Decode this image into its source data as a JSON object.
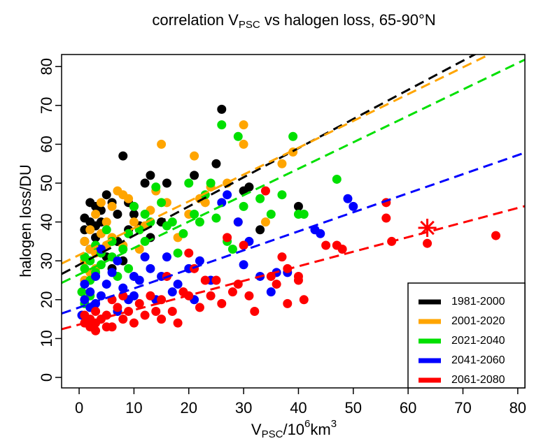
{
  "chart_data": {
    "type": "scatter",
    "title": [
      "correlation V",
      "PSC",
      " vs halogen loss, 65-90°N"
    ],
    "xlabel": [
      "V",
      "PSC",
      "/10",
      "6",
      "km",
      "3"
    ],
    "ylabel": "halogen loss/DU",
    "xlim": [
      -3.2,
      81.3
    ],
    "ylim": [
      -2.7,
      83.1
    ],
    "xticks": [
      0,
      10,
      20,
      30,
      40,
      50,
      60,
      70,
      80
    ],
    "yticks": [
      0,
      10,
      20,
      30,
      40,
      50,
      60,
      70,
      80
    ],
    "legend": "bottom-right",
    "series": [
      {
        "name": "1981-2000",
        "color": "black",
        "fit": {
          "slope": 0.75,
          "intercept": 29
        },
        "x": [
          8,
          13,
          12,
          16,
          21,
          25,
          26,
          30,
          31,
          33,
          40,
          5,
          6,
          2,
          3,
          1,
          1,
          4,
          7,
          9,
          10,
          15,
          3,
          2,
          5,
          6,
          8,
          10,
          11,
          13,
          4,
          1,
          2,
          3,
          7,
          9
        ],
        "values": [
          57,
          52,
          50,
          50,
          52,
          55,
          69,
          48,
          49,
          38,
          44,
          47,
          45,
          45,
          44,
          41,
          38,
          40,
          35,
          38,
          42,
          40,
          36,
          33,
          31,
          28,
          30,
          44,
          39,
          36,
          43,
          35,
          40,
          39,
          42,
          45
        ]
      },
      {
        "name": "2001-2020",
        "color": "orange",
        "fit": {
          "slope": 0.69,
          "intercept": 31.5
        },
        "x": [
          1,
          1,
          2,
          2,
          3,
          3,
          4,
          5,
          6,
          7,
          8,
          9,
          10,
          11,
          12,
          14,
          15,
          16,
          18,
          20,
          21,
          22,
          23,
          27,
          30,
          30,
          34,
          37,
          39,
          4,
          1,
          2,
          3,
          5,
          6,
          13,
          11,
          8,
          24,
          29
        ],
        "values": [
          30,
          35,
          38,
          27,
          42,
          32,
          37,
          40,
          36,
          48,
          47,
          46,
          40,
          38,
          39,
          48,
          60,
          45,
          36,
          42,
          57,
          46,
          45,
          50,
          60,
          65,
          40,
          55,
          58,
          45,
          25,
          33,
          28,
          34,
          44,
          43,
          33,
          34,
          49,
          40
        ]
      },
      {
        "name": "2021-2040",
        "color": "#00e000",
        "fit": {
          "slope": 0.68,
          "intercept": 26.5
        },
        "x": [
          0.5,
          1,
          1,
          2,
          2,
          3,
          3,
          4,
          4,
          5,
          6,
          7,
          8,
          9,
          10,
          11,
          12,
          13,
          14,
          15,
          16,
          17,
          19,
          20,
          21,
          22,
          23,
          24,
          25,
          26,
          27,
          28,
          29,
          30,
          33,
          35,
          37,
          39,
          40,
          41,
          47,
          1,
          2,
          6,
          9,
          12,
          18
        ],
        "values": [
          22,
          28,
          31,
          25,
          30,
          34,
          27,
          32,
          29,
          38,
          31,
          26,
          33,
          37,
          44,
          38,
          35,
          40,
          49,
          45,
          39,
          40,
          37,
          50,
          42,
          40,
          47,
          50,
          41,
          65,
          35,
          33,
          62,
          44,
          46,
          42,
          47,
          62,
          42,
          42,
          51,
          19,
          21,
          35,
          28,
          42,
          32
        ]
      },
      {
        "name": "2041-2060",
        "color": "#0000ff",
        "fit": {
          "slope": 0.49,
          "intercept": 18
        },
        "x": [
          0.5,
          1,
          1,
          2,
          2,
          3,
          3,
          4,
          5,
          6,
          7,
          8,
          9,
          10,
          11,
          12,
          13,
          14,
          15,
          16,
          17,
          18,
          20,
          21,
          22,
          24,
          26,
          27,
          29,
          30,
          31,
          33,
          35,
          36,
          38,
          43,
          44,
          49,
          50,
          4,
          7,
          10
        ],
        "values": [
          16,
          20,
          24,
          18,
          22,
          26,
          19,
          21,
          24,
          27,
          17,
          23,
          20,
          26,
          25,
          31,
          28,
          20,
          26,
          31,
          22,
          24,
          28,
          20,
          30,
          25,
          45,
          47,
          40,
          29,
          35,
          26,
          22,
          27,
          27,
          38,
          37,
          46,
          44,
          33,
          30,
          21
        ]
      },
      {
        "name": "2061-2080",
        "color": "#ff0000",
        "fit": {
          "slope": 0.375,
          "intercept": 13.6
        },
        "x": [
          1,
          1,
          2,
          2,
          3,
          3,
          4,
          5,
          5,
          6,
          7,
          8,
          9,
          10,
          11,
          12,
          13,
          14,
          15,
          15,
          16,
          17,
          18,
          19,
          20,
          20,
          21,
          22,
          23,
          24,
          25,
          26,
          27,
          28,
          29,
          30,
          31,
          32,
          34,
          35,
          36,
          37,
          38,
          38,
          40,
          40,
          41,
          45,
          47,
          48,
          56,
          56,
          57,
          63.5,
          76,
          6,
          8,
          3
        ],
        "values": [
          14,
          16,
          13,
          15,
          14,
          17,
          15,
          16,
          13,
          20,
          18,
          15,
          17,
          14,
          19,
          16,
          21,
          17,
          20,
          15,
          26,
          17,
          14,
          22,
          32,
          21,
          28,
          18,
          25,
          21,
          25,
          19,
          36,
          22,
          24,
          34,
          21,
          17,
          48,
          26,
          24,
          31,
          28,
          19,
          26,
          25,
          20,
          34,
          34,
          33,
          45,
          41,
          35,
          34.5,
          36.5,
          13,
          21,
          12
        ]
      }
    ],
    "highlight": {
      "x": 63.5,
      "y": 38.5,
      "color": "#ff0000"
    }
  }
}
